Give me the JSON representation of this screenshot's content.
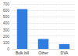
{
  "chart_data": {
    "type": "bar",
    "categories": [
      "Bulk bill",
      "Other",
      "DVA"
    ],
    "values": [
      620,
      155,
      75
    ],
    "color": "#2f7de1",
    "ylim": [
      0,
      700
    ],
    "yticks": [
      0,
      100,
      200,
      300,
      400,
      500,
      600,
      700
    ],
    "grid": true
  }
}
